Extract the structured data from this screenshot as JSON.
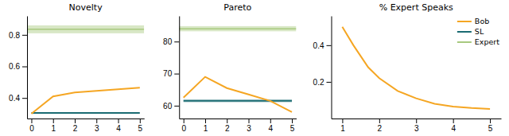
{
  "chart_data": [
    {
      "type": "line",
      "title": "Novelty",
      "series": [
        {
          "name": "Bob",
          "color": "#F5A623",
          "x": [
            0,
            1,
            2,
            3,
            4,
            5
          ],
          "values": [
            0.3,
            0.41,
            0.435,
            0.445,
            0.455,
            0.465
          ]
        },
        {
          "name": "SL",
          "color": "#1A6B72",
          "x": [
            0,
            5
          ],
          "values": [
            0.305,
            0.305
          ]
        },
        {
          "name": "Expert",
          "color": "#A8C97F",
          "type": "hline",
          "values": [
            0.835
          ],
          "band": 0.025
        }
      ],
      "xlim": [
        -0.2,
        5.2
      ],
      "xticks": [
        0,
        1,
        2,
        3,
        4,
        5
      ],
      "ylim": [
        0.27,
        0.92
      ],
      "yticks": [
        0.4,
        0.6,
        0.8
      ]
    },
    {
      "type": "line",
      "title": "Pareto",
      "series": [
        {
          "name": "Bob",
          "color": "#F5A623",
          "x": [
            0,
            1,
            2,
            3,
            4,
            5
          ],
          "values": [
            62.5,
            69.0,
            65.5,
            63.5,
            61.5,
            58.0
          ]
        },
        {
          "name": "SL",
          "color": "#1A6B72",
          "x": [
            0,
            5
          ],
          "values": [
            61.5,
            61.5
          ],
          "band": 0.5
        },
        {
          "name": "Expert",
          "color": "#A8C97F",
          "type": "hline",
          "values": [
            84.0
          ],
          "band": 0.8
        }
      ],
      "xlim": [
        -0.2,
        5.2
      ],
      "xticks": [
        0,
        1,
        2,
        3,
        4,
        5
      ],
      "ylim": [
        56,
        88
      ],
      "yticks": [
        60,
        70,
        80
      ]
    },
    {
      "type": "line",
      "title": "% Expert Speaks",
      "series": [
        {
          "name": "Bob",
          "color": "#F5A623",
          "x": [
            1,
            1.3,
            1.7,
            2.0,
            2.5,
            3.0,
            3.5,
            4.0,
            4.5,
            5.0
          ],
          "values": [
            0.5,
            0.4,
            0.28,
            0.22,
            0.15,
            0.11,
            0.08,
            0.065,
            0.057,
            0.052
          ]
        }
      ],
      "xlim": [
        0.7,
        5.3
      ],
      "xticks": [
        1,
        2,
        3,
        4,
        5
      ],
      "ylim": [
        0.0,
        0.56
      ],
      "yticks": [
        0.2,
        0.4
      ],
      "legend": "upper right"
    }
  ]
}
